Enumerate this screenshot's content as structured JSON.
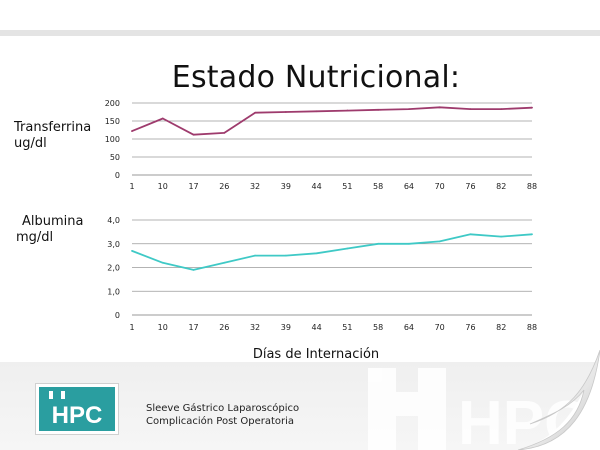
{
  "slide": {
    "title": "Estado Nutricional:",
    "xlabel": "Días de Internación",
    "footer": {
      "line1": "Sleeve Gástrico Laparoscópico",
      "line2": "Complicación Post Operatoria",
      "logo_text": "HPC",
      "watermark_text": "HPC"
    }
  },
  "colors": {
    "transferrina": "#9e3b6d",
    "albumina": "#3fc9c6",
    "logo": "#2a9ea0"
  },
  "chart_data": [
    {
      "type": "line",
      "ylabel_lines": [
        "Transferrina",
        "ug/dl"
      ],
      "x": [
        "1",
        "10",
        "17",
        "26",
        "32",
        "39",
        "44",
        "51",
        "58",
        "64",
        "70",
        "76",
        "82",
        "88"
      ],
      "series": [
        {
          "values": [
            122,
            157,
            112,
            117,
            173,
            175,
            177,
            179,
            181,
            183,
            188,
            183,
            183,
            187
          ]
        }
      ],
      "yticks": [
        "0",
        "50",
        "100",
        "150",
        "200"
      ],
      "ylim": [
        0,
        200
      ],
      "grid": true
    },
    {
      "type": "line",
      "ylabel_lines": [
        "Albumina",
        "mg/dl"
      ],
      "x": [
        "1",
        "10",
        "17",
        "26",
        "32",
        "39",
        "44",
        "51",
        "58",
        "64",
        "70",
        "76",
        "82",
        "88"
      ],
      "series": [
        {
          "values": [
            2.7,
            2.2,
            1.9,
            2.2,
            2.5,
            2.5,
            2.6,
            2.8,
            3.0,
            3.0,
            3.1,
            3.4,
            3.3,
            3.4
          ]
        }
      ],
      "yticks": [
        "0",
        "1,0",
        "2,0",
        "3,0",
        "4,0"
      ],
      "ylim": [
        0,
        4
      ],
      "grid": true
    }
  ]
}
